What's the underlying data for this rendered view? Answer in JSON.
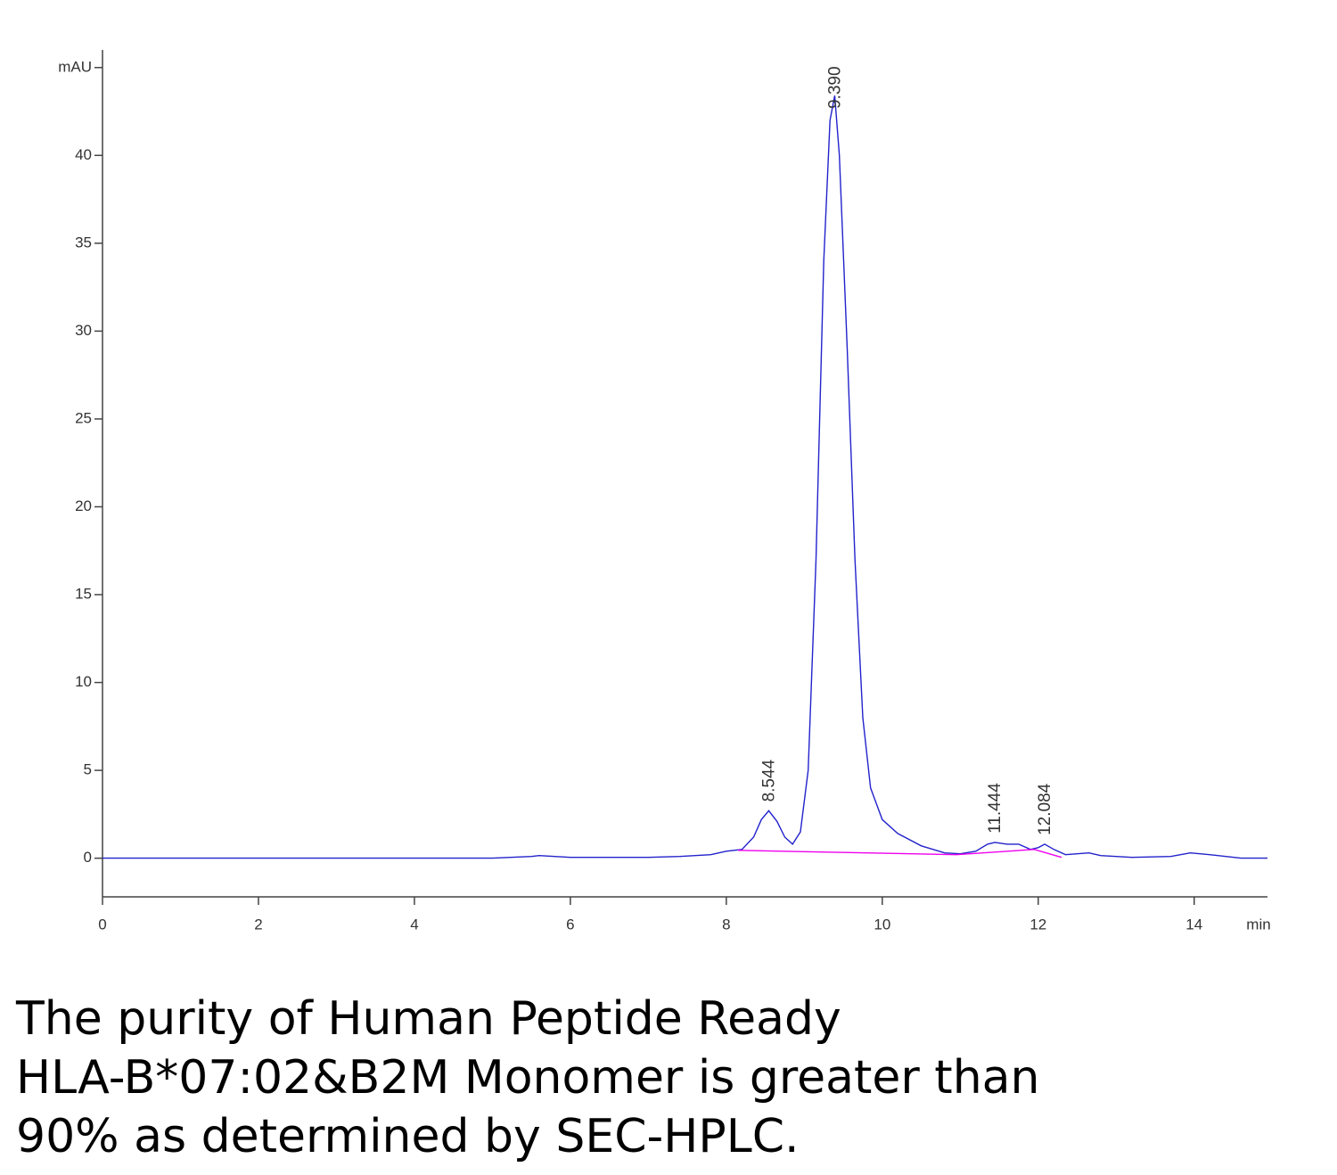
{
  "chart_data": {
    "type": "line",
    "x": [
      0,
      1,
      2,
      3,
      4,
      5,
      5.5,
      5.6,
      5.8,
      6,
      7,
      7.4,
      7.8,
      8.0,
      8.2,
      8.35,
      8.45,
      8.544,
      8.65,
      8.75,
      8.85,
      8.95,
      9.05,
      9.15,
      9.25,
      9.33,
      9.39,
      9.45,
      9.55,
      9.65,
      9.75,
      9.85,
      10.0,
      10.2,
      10.5,
      10.8,
      11.0,
      11.2,
      11.35,
      11.444,
      11.6,
      11.75,
      11.9,
      12.0,
      12.084,
      12.2,
      12.35,
      12.5,
      12.65,
      12.8,
      13.2,
      13.7,
      13.95,
      14.2,
      14.6,
      14.94
    ],
    "series": [
      {
        "color": "#2222cc",
        "values": [
          0,
          0,
          0,
          0,
          0,
          0,
          0.1,
          0.15,
          0.1,
          0.05,
          0.05,
          0.1,
          0.2,
          0.4,
          0.5,
          1.2,
          2.2,
          2.7,
          2.1,
          1.2,
          0.8,
          1.5,
          5,
          17,
          34,
          42,
          43.4,
          40,
          29,
          17,
          8,
          4,
          2.2,
          1.4,
          0.7,
          0.3,
          0.25,
          0.4,
          0.8,
          0.9,
          0.8,
          0.8,
          0.5,
          0.6,
          0.8,
          0.5,
          0.2,
          0.25,
          0.3,
          0.15,
          0.05,
          0.1,
          0.3,
          0.2,
          0,
          0
        ]
      },
      {
        "color": "#ee00ee",
        "x": [
          8.15,
          10.95,
          11.95,
          12.3
        ],
        "values": [
          0.45,
          0.2,
          0.5,
          0.05
        ]
      }
    ],
    "peaks": [
      {
        "value": 8.544,
        "label": "8.544"
      },
      {
        "value": 9.39,
        "label": "9.390"
      },
      {
        "value": 11.444,
        "label": "11.444"
      },
      {
        "value": 12.084,
        "label": "12.084"
      }
    ],
    "xlim": [
      0,
      14.94
    ],
    "ylim": [
      -2.2,
      45.8
    ],
    "xticks": [
      0,
      2,
      4,
      6,
      8,
      10,
      12,
      14
    ],
    "yticks": [
      0,
      5,
      10,
      15,
      20,
      25,
      30,
      35,
      40,
      {
        "value": 45,
        "label": "mAU"
      }
    ],
    "xlabel": "min",
    "caption": [
      "The purity of Human Peptide Ready",
      "HLA-B*07:02&B2M Monomer is greater than",
      "90% as determined by SEC-HPLC."
    ]
  }
}
